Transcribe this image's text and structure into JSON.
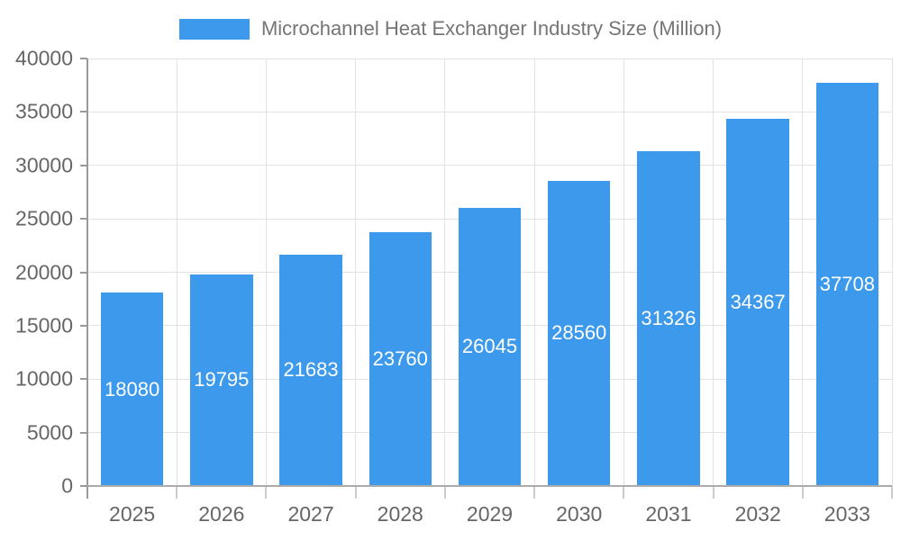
{
  "chart_data": {
    "type": "bar",
    "title": "Microchannel Heat Exchanger Industry Size (Million)",
    "categories": [
      "2025",
      "2026",
      "2027",
      "2028",
      "2029",
      "2030",
      "2031",
      "2032",
      "2033"
    ],
    "values": [
      18080,
      19795,
      21683,
      23760,
      26045,
      28560,
      31326,
      34367,
      37708
    ],
    "xlabel": "",
    "ylabel": "",
    "ylim": [
      0,
      40000
    ],
    "yticks": [
      0,
      5000,
      10000,
      15000,
      20000,
      25000,
      30000,
      35000,
      40000
    ],
    "grid": true,
    "legend_position": "top",
    "value_labels": "centered-inside-bars",
    "colors": {
      "background": "#FFFFFF",
      "bar": "#3D99EC",
      "grid": "#E2E2E2",
      "axis_y": "#999999",
      "axis_x": "#ABABAB",
      "tick": "#999999",
      "x_tick": "#CCCCCC",
      "tick_label": "#666666",
      "value_label": "#FFFFFF",
      "legend_text": "#757575"
    }
  }
}
